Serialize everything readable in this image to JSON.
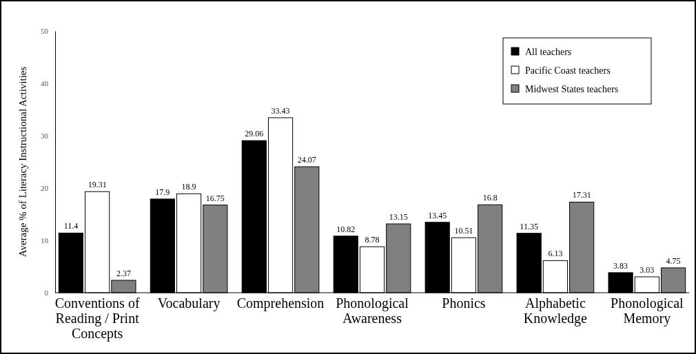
{
  "chart_data": {
    "type": "bar",
    "ylabel": "Average % of Literacy Instructional Activities",
    "categories": [
      "Conventions of Reading / Print Concepts",
      "Vocabulary",
      "Comprehension",
      "Phonological Awareness",
      "Phonics",
      "Alphabetic Knowledge",
      "Phonological Memory"
    ],
    "series": [
      {
        "name": "All teachers",
        "color": "#000000",
        "values": [
          11.4,
          17.9,
          29.06,
          10.82,
          13.45,
          11.35,
          3.83
        ]
      },
      {
        "name": "Pacific Coast teachers",
        "color": "#ffffff",
        "values": [
          19.31,
          18.9,
          33.43,
          8.78,
          10.51,
          6.13,
          3.03
        ]
      },
      {
        "name": "Midwest States teachers",
        "color": "#808080",
        "values": [
          2.37,
          16.75,
          24.07,
          13.15,
          16.8,
          17.31,
          4.75
        ]
      }
    ],
    "ylim": [
      0,
      50
    ],
    "yticks": [
      0,
      10,
      20,
      30,
      40,
      50
    ],
    "data_labels": true,
    "legend": "top right"
  }
}
